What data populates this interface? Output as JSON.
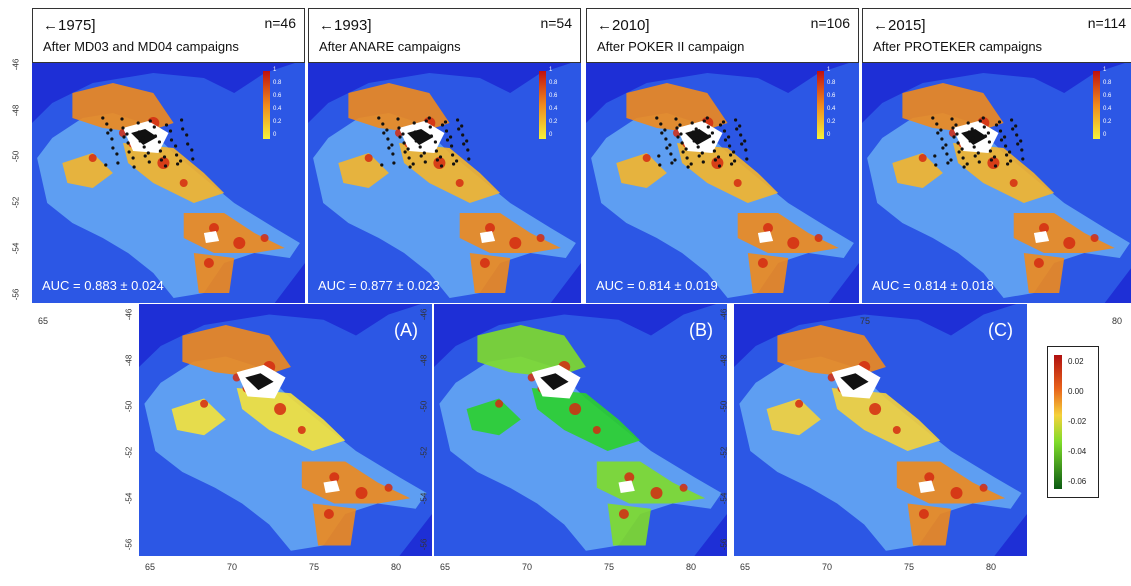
{
  "top_panels": [
    {
      "period": "1975]",
      "n": "n=46",
      "subtitle": "After MD03 and MD04 campaigns",
      "auc": "AUC =  0.883 ± 0.024"
    },
    {
      "period": "1993]",
      "n": "n=54",
      "subtitle": "After ANARE campaigns",
      "auc": "AUC =  0.877 ± 0.023"
    },
    {
      "period": "2010]",
      "n": "n=106",
      "subtitle": "After POKER II campaign",
      "auc": "AUC =  0.814 ± 0.019"
    },
    {
      "period": "2015]",
      "n": "n=114",
      "subtitle": "After PROTEKER campaigns",
      "auc": "AUC =  0.814 ± 0.018"
    }
  ],
  "bottom_panels": [
    {
      "letter": "(A)"
    },
    {
      "letter": "(B)"
    },
    {
      "letter": "(C)"
    }
  ],
  "arrow_glyph": "🡐",
  "top_colorbar_labels": [
    "1",
    "0.8",
    "0.6",
    "0.4",
    "0.2",
    "0"
  ],
  "diff_colorbar_labels": [
    "0.02",
    "0.00",
    "-0.02",
    "-0.04",
    "-0.06"
  ],
  "lon_ticks": [
    "65",
    "70",
    "75",
    "80"
  ],
  "lat_ticks": [
    "-46",
    "-48",
    "-50",
    "-52",
    "-54",
    "-56"
  ],
  "colors": {
    "ocean_deep": "#1e2fd6",
    "shelf": "#4f8ff0",
    "suit_high": "#d42a12",
    "suit_mid": "#f08a1c",
    "suit_low": "#f5e23a",
    "diff_neg": "#2bd02b"
  }
}
